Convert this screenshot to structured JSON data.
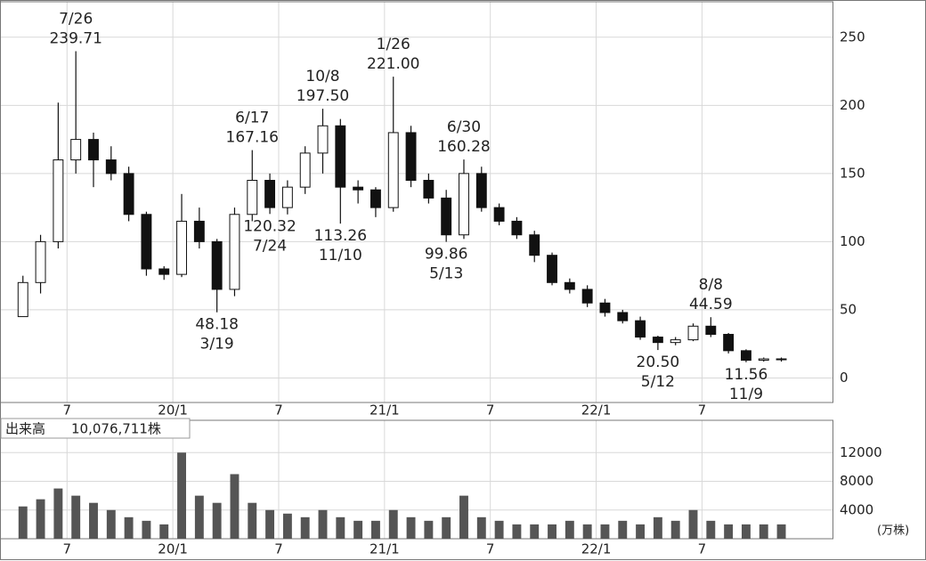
{
  "chart_data": [
    {
      "type": "candlestick",
      "x": [
        3.5,
        4.5,
        5.5,
        6.5,
        7.5,
        8.5,
        9.5,
        10.5,
        11.5,
        12.5,
        13.5,
        14.5,
        15.5,
        16.5,
        17.5,
        18.5,
        19.5,
        20.5,
        21.5,
        22.5,
        23.5,
        24.5,
        25.5,
        26.5,
        27.5,
        28.5,
        29.5,
        30.5,
        31.5,
        32.5,
        33.5,
        34.5,
        35.5,
        36.5,
        37.5,
        38.5,
        39.5,
        40.5,
        41.5,
        42.5,
        43.5,
        44.5,
        45.5,
        46.5
      ],
      "open": [
        45,
        70,
        100,
        160,
        175,
        160,
        150,
        120,
        80,
        76,
        115,
        100,
        65,
        120,
        145,
        125,
        140,
        165,
        185,
        140,
        138,
        125,
        180,
        145,
        132,
        105,
        150,
        125,
        115,
        105,
        90,
        70,
        65,
        55,
        48,
        42,
        30,
        26,
        28,
        38,
        32,
        20,
        13,
        14
      ],
      "high": [
        75,
        105,
        202,
        239.71,
        180,
        170,
        155,
        122,
        82,
        135,
        125,
        102,
        125,
        167.16,
        150,
        145,
        170,
        197.5,
        190,
        145,
        140,
        221,
        185,
        150,
        138,
        160.28,
        155,
        128,
        118,
        108,
        92,
        73,
        68,
        58,
        50,
        45,
        31,
        30,
        40,
        44.59,
        33,
        21,
        15,
        15
      ],
      "low": [
        45,
        62,
        95,
        150,
        140,
        145,
        115,
        75,
        72,
        74,
        95,
        48.18,
        60,
        115,
        120.32,
        120,
        135,
        150,
        113.26,
        128,
        118,
        122,
        140,
        128,
        99.86,
        102,
        122,
        112,
        102,
        85,
        68,
        62,
        52,
        45,
        40,
        28,
        20.5,
        24,
        27,
        30,
        18,
        11.56,
        12,
        12
      ],
      "close": [
        70,
        100,
        160,
        175,
        160,
        150,
        120,
        80,
        76,
        115,
        100,
        65,
        120,
        145,
        125,
        140,
        165,
        185,
        140,
        138,
        125,
        180,
        145,
        132,
        105,
        150,
        125,
        115,
        105,
        90,
        70,
        65,
        55,
        48,
        42,
        30,
        26,
        28,
        38,
        32,
        20,
        13,
        14,
        14
      ],
      "up_color": "#ffffff",
      "down_color": "#111111",
      "line_color": "#111111",
      "xlim": [
        2.2,
        49.4
      ],
      "xticks": [
        {
          "value": 6,
          "label": "7"
        },
        {
          "value": 12,
          "label": "20/1"
        },
        {
          "value": 18,
          "label": "7"
        },
        {
          "value": 24,
          "label": "21/1"
        },
        {
          "value": 30,
          "label": "7"
        },
        {
          "value": 36,
          "label": "22/1"
        },
        {
          "value": 42,
          "label": "7"
        }
      ],
      "ylim": [
        -18,
        276
      ],
      "yticks": [
        0,
        50,
        100,
        150,
        200,
        250
      ],
      "grid": true,
      "annotations": [
        {
          "date": "7/26",
          "value": 239.71,
          "label": "239.71",
          "x": 6.5,
          "at": "above"
        },
        {
          "date": "6/17",
          "value": 167.16,
          "label": "167.16",
          "x": 16.5,
          "at": "above"
        },
        {
          "date": "10/8",
          "value": 197.5,
          "label": "197.50",
          "x": 20.5,
          "at": "above"
        },
        {
          "date": "1/26",
          "value": 221,
          "label": "221.00",
          "x": 24.5,
          "at": "above"
        },
        {
          "date": "6/30",
          "value": 160.28,
          "label": "160.28",
          "x": 28.5,
          "at": "above"
        },
        {
          "date": "8/8",
          "value": 44.59,
          "label": "44.59",
          "x": 42.5,
          "at": "above"
        },
        {
          "date": "3/19",
          "value": 48.18,
          "label": "48.18",
          "x": 14.5,
          "at": "below"
        },
        {
          "date": "7/24",
          "value": 120.32,
          "label": "120.32",
          "x": 17.5,
          "at": "below"
        },
        {
          "date": "11/10",
          "value": 113.26,
          "label": "113.26",
          "x": 21.5,
          "at": "below"
        },
        {
          "date": "5/13",
          "value": 99.86,
          "label": "99.86",
          "x": 27.5,
          "at": "below"
        },
        {
          "date": "5/12",
          "value": 20.5,
          "label": "20.50",
          "x": 39.5,
          "at": "below"
        },
        {
          "date": "11/9",
          "value": 11.56,
          "label": "11.56",
          "x": 44.5,
          "at": "below"
        }
      ]
    },
    {
      "type": "bar",
      "title": "出来高",
      "total": "10,076,711株",
      "unit": "(万株)",
      "x": [
        3.5,
        4.5,
        5.5,
        6.5,
        7.5,
        8.5,
        9.5,
        10.5,
        11.5,
        12.5,
        13.5,
        14.5,
        15.5,
        16.5,
        17.5,
        18.5,
        19.5,
        20.5,
        21.5,
        22.5,
        23.5,
        24.5,
        25.5,
        26.5,
        27.5,
        28.5,
        29.5,
        30.5,
        31.5,
        32.5,
        33.5,
        34.5,
        35.5,
        36.5,
        37.5,
        38.5,
        39.5,
        40.5,
        41.5,
        42.5,
        43.5,
        44.5,
        45.5,
        46.5
      ],
      "values": [
        4500,
        5500,
        7000,
        6000,
        5000,
        4000,
        3000,
        2500,
        2000,
        12000,
        6000,
        5000,
        9000,
        5000,
        4000,
        3500,
        3000,
        4000,
        3000,
        2500,
        2500,
        4000,
        3000,
        2500,
        3000,
        6000,
        3000,
        2500,
        2000,
        2000,
        2000,
        2500,
        2000,
        2000,
        2500,
        2000,
        3000,
        2500,
        4000,
        2500,
        2000,
        2000,
        2000,
        2000
      ],
      "color": "#555555",
      "xlim": [
        2.2,
        49.4
      ],
      "xticks": [
        {
          "value": 6,
          "label": "7"
        },
        {
          "value": 12,
          "label": "20/1"
        },
        {
          "value": 18,
          "label": "7"
        },
        {
          "value": 24,
          "label": "21/1"
        },
        {
          "value": 30,
          "label": "7"
        },
        {
          "value": 36,
          "label": "22/1"
        },
        {
          "value": 42,
          "label": "7"
        }
      ],
      "ylim": [
        0,
        16500
      ],
      "yticks": [
        4000,
        8000,
        12000
      ],
      "grid": true
    }
  ]
}
